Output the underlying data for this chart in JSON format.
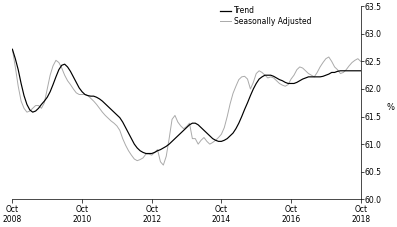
{
  "ylabel": "%",
  "ylim": [
    60.0,
    63.5
  ],
  "yticks": [
    60.0,
    60.5,
    61.0,
    61.5,
    62.0,
    62.5,
    63.0,
    63.5
  ],
  "xtick_labels": [
    "Oct\n2008",
    "Oct\n2010",
    "Oct\n2012",
    "Oct\n2014",
    "Oct\n2016",
    "Oct\n2018"
  ],
  "xtick_positions": [
    0,
    24,
    48,
    72,
    96,
    120
  ],
  "trend_color": "#000000",
  "sa_color": "#aaaaaa",
  "legend_labels": [
    "Trend",
    "Seasonally Adjusted"
  ],
  "background_color": "#ffffff",
  "trend": [
    62.72,
    62.55,
    62.35,
    62.1,
    61.88,
    61.72,
    61.62,
    61.58,
    61.6,
    61.65,
    61.72,
    61.78,
    61.85,
    61.95,
    62.08,
    62.22,
    62.35,
    62.43,
    62.45,
    62.4,
    62.32,
    62.22,
    62.12,
    62.02,
    61.95,
    61.9,
    61.88,
    61.87,
    61.87,
    61.85,
    61.82,
    61.78,
    61.73,
    61.68,
    61.63,
    61.58,
    61.53,
    61.48,
    61.4,
    61.3,
    61.2,
    61.1,
    61.0,
    60.93,
    60.88,
    60.85,
    60.83,
    60.83,
    60.83,
    60.85,
    60.88,
    60.9,
    60.93,
    60.96,
    61.0,
    61.05,
    61.1,
    61.15,
    61.2,
    61.25,
    61.3,
    61.35,
    61.38,
    61.38,
    61.35,
    61.3,
    61.25,
    61.2,
    61.15,
    61.1,
    61.07,
    61.05,
    61.05,
    61.07,
    61.1,
    61.15,
    61.2,
    61.28,
    61.38,
    61.5,
    61.63,
    61.75,
    61.88,
    62.0,
    62.1,
    62.18,
    62.22,
    62.25,
    62.25,
    62.25,
    62.23,
    62.2,
    62.17,
    62.15,
    62.12,
    62.1,
    62.1,
    62.1,
    62.12,
    62.15,
    62.18,
    62.2,
    62.22,
    62.22,
    62.22,
    62.22,
    62.22,
    62.23,
    62.25,
    62.27,
    62.3,
    62.3,
    62.32,
    62.33,
    62.33,
    62.33,
    62.33,
    62.33,
    62.33,
    62.33,
    62.33
  ],
  "sa": [
    62.72,
    62.4,
    62.05,
    61.78,
    61.65,
    61.58,
    61.6,
    61.65,
    61.7,
    61.7,
    61.65,
    61.75,
    62.0,
    62.25,
    62.42,
    62.52,
    62.48,
    62.38,
    62.25,
    62.15,
    62.08,
    62.0,
    61.93,
    61.9,
    61.9,
    61.9,
    61.88,
    61.83,
    61.78,
    61.72,
    61.65,
    61.58,
    61.52,
    61.47,
    61.42,
    61.38,
    61.33,
    61.25,
    61.1,
    60.98,
    60.88,
    60.8,
    60.73,
    60.7,
    60.72,
    60.75,
    60.82,
    60.82,
    60.8,
    60.85,
    60.9,
    60.68,
    60.62,
    60.78,
    61.1,
    61.45,
    61.52,
    61.4,
    61.33,
    61.28,
    61.32,
    61.38,
    61.1,
    61.1,
    61.0,
    61.07,
    61.12,
    61.05,
    61.0,
    61.03,
    61.07,
    61.12,
    61.18,
    61.3,
    61.5,
    61.73,
    61.92,
    62.05,
    62.17,
    62.22,
    62.23,
    62.18,
    62.0,
    62.12,
    62.28,
    62.33,
    62.3,
    62.25,
    62.2,
    62.22,
    62.2,
    62.15,
    62.1,
    62.07,
    62.05,
    62.08,
    62.18,
    62.25,
    62.35,
    62.4,
    62.38,
    62.33,
    62.28,
    62.25,
    62.22,
    62.3,
    62.4,
    62.48,
    62.55,
    62.58,
    62.5,
    62.4,
    62.35,
    62.28,
    62.3,
    62.35,
    62.42,
    62.48,
    62.52,
    62.55,
    62.5
  ]
}
